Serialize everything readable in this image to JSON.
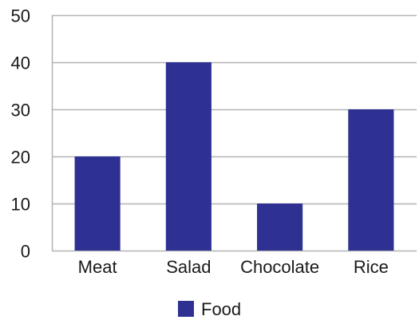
{
  "chart_data": {
    "type": "bar",
    "title": "",
    "xlabel": "",
    "ylabel": "",
    "categories": [
      "Meat",
      "Salad",
      "Chocolate",
      "Rice"
    ],
    "series": [
      {
        "name": "Food",
        "values": [
          20,
          40,
          10,
          30
        ],
        "color": "#2e3192"
      }
    ],
    "ylim": [
      0,
      50
    ],
    "yticks": [
      0,
      10,
      20,
      30,
      40,
      50
    ],
    "grid": true,
    "legend_position": "bottom"
  }
}
